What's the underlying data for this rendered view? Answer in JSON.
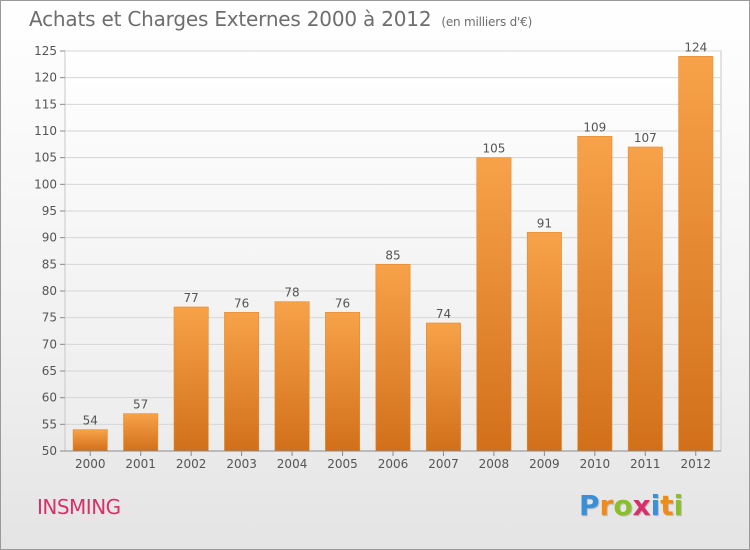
{
  "header": {
    "title": "Achats et Charges Externes 2000 à 2012",
    "subtitle": "(en milliers d'€)"
  },
  "footer": {
    "town": "INSMING",
    "logo_letters": [
      "P",
      "r",
      "o",
      "x",
      "i",
      "t",
      "i"
    ],
    "logo_colors": [
      "#3a8fd6",
      "#f08a1c",
      "#8bbf2a",
      "#d9306a",
      "#3a8fd6",
      "#f08a1c",
      "#8bbf2a"
    ]
  },
  "chart_data": {
    "type": "bar",
    "categories": [
      "2000",
      "2001",
      "2002",
      "2003",
      "2004",
      "2005",
      "2006",
      "2007",
      "2008",
      "2009",
      "2010",
      "2011",
      "2012"
    ],
    "values": [
      54,
      57,
      77,
      76,
      78,
      76,
      85,
      74,
      105,
      91,
      109,
      107,
      124
    ],
    "data_labels": [
      "54",
      "57",
      "77",
      "76",
      "78",
      "76",
      "85",
      "74",
      "105",
      "91",
      "109",
      "107",
      "124"
    ],
    "ylim": [
      50,
      125
    ],
    "yticks": [
      "50",
      "55",
      "60",
      "65",
      "70",
      "75",
      "80",
      "85",
      "90",
      "95",
      "100",
      "105",
      "110",
      "115",
      "120",
      "125"
    ],
    "grid": true,
    "bar_color": "#f0922e",
    "bar_color_dark": "#d06d12"
  }
}
